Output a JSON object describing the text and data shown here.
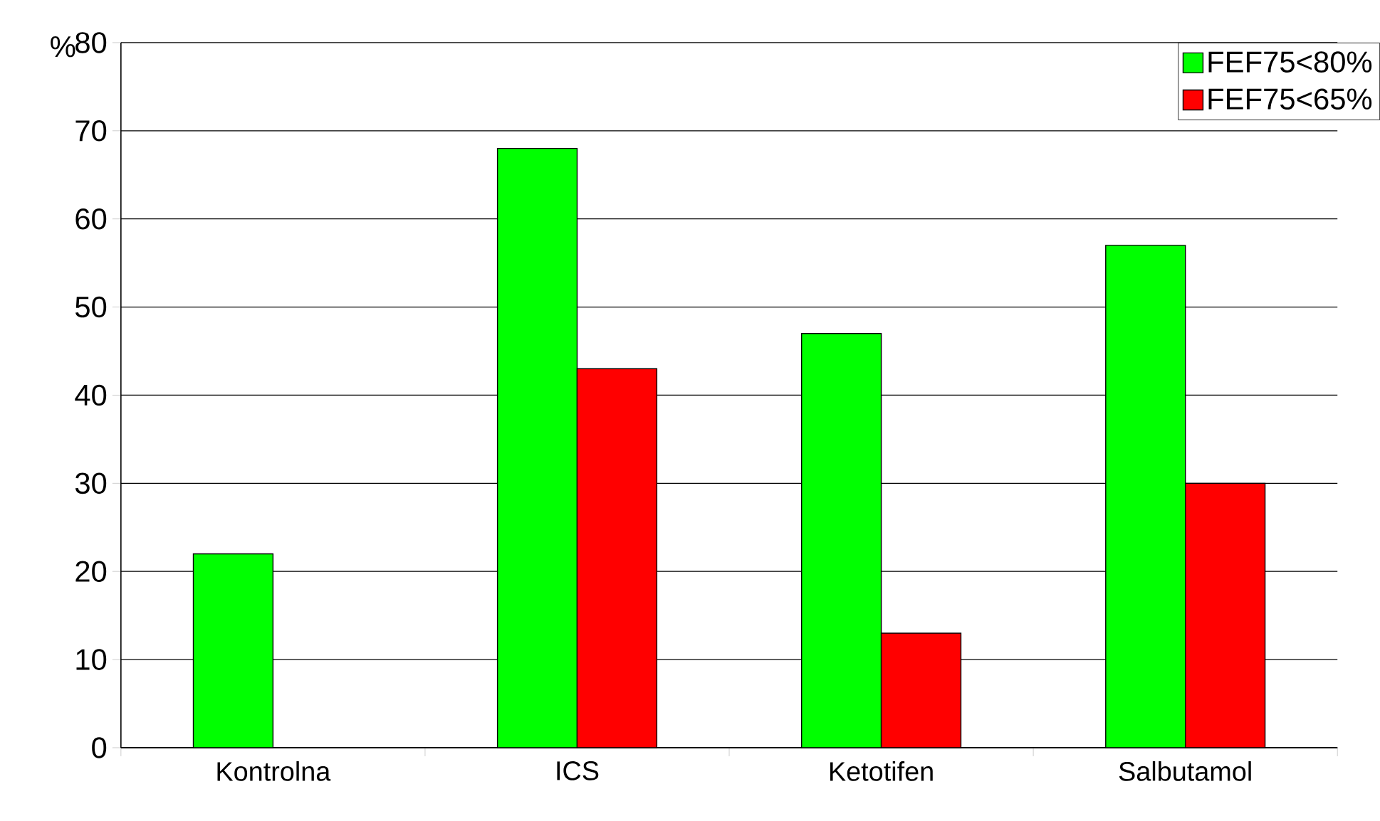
{
  "chart_data": {
    "type": "bar",
    "ylabel": "%",
    "categories": [
      "Kontrolna",
      "ICS",
      "Ketotifen",
      "Salbutamol"
    ],
    "series": [
      {
        "name": "FEF75<80%",
        "color": "#00ff00",
        "values": [
          22,
          68,
          47,
          57
        ]
      },
      {
        "name": "FEF75<65%",
        "color": "#ff0000",
        "values": [
          null,
          43,
          13,
          30
        ]
      }
    ],
    "ylim": [
      0,
      80
    ],
    "yticks": [
      0,
      10,
      20,
      30,
      40,
      50,
      60,
      70,
      80
    ],
    "grid": "y",
    "legend": "top right"
  }
}
